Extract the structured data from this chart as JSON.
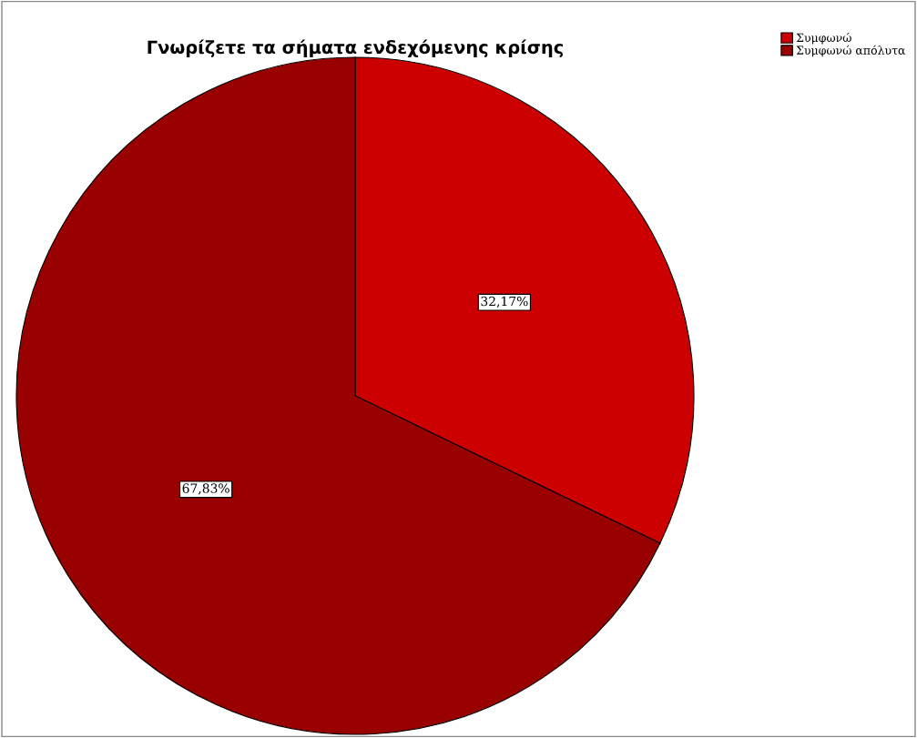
{
  "chart_data": {
    "type": "pie",
    "title": "Γνωρίζετε τα σήματα ενδεχόμενης κρίσης",
    "categories": [
      "Συμφωνώ",
      "Συμφωνώ απόλυτα"
    ],
    "values": [
      32.17,
      67.83
    ],
    "colors": [
      "#cc0000",
      "#990000"
    ],
    "value_labels": [
      "32,17%",
      "67,83%"
    ],
    "legend": "top right"
  }
}
